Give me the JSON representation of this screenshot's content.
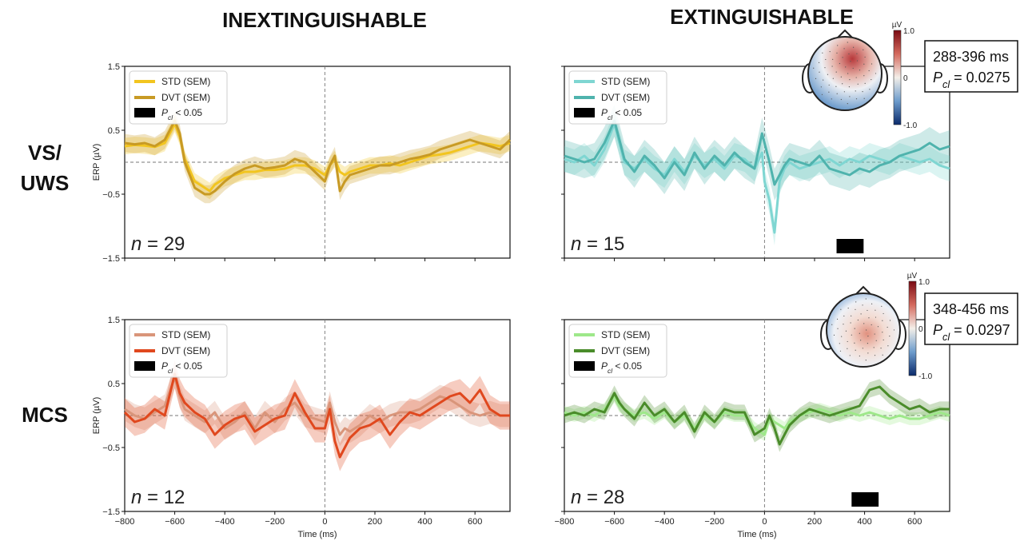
{
  "figure": {
    "column_titles": [
      "INEXTINGUISHABLE",
      "EXTINGUISHABLE"
    ],
    "row_titles": [
      [
        "VS/",
        "UWS"
      ],
      [
        "MCS"
      ]
    ]
  },
  "chart_data": [
    {
      "type": "line",
      "panel": "VS/UWS - Inextinguishable",
      "n_label": "n = 29",
      "ylabel": "ERP (µV)",
      "xlabel": "",
      "xlim": [
        -800,
        740
      ],
      "ylim": [
        -1.5,
        1.5
      ],
      "yticks": [
        "1.5",
        "0.5",
        "−0.5",
        "−1.5"
      ],
      "xticks": [],
      "x": [
        -800,
        -760,
        -720,
        -680,
        -640,
        -600,
        -580,
        -560,
        -520,
        -480,
        -460,
        -440,
        -400,
        -360,
        -320,
        -280,
        -240,
        -200,
        -160,
        -120,
        -80,
        -40,
        0,
        20,
        40,
        60,
        80,
        100,
        140,
        180,
        220,
        260,
        300,
        340,
        380,
        420,
        460,
        500,
        540,
        580,
        620,
        660,
        700,
        740
      ],
      "series": [
        {
          "name": "STD (SEM)",
          "color": "#f2c51f",
          "values": [
            0.25,
            0.27,
            0.26,
            0.24,
            0.3,
            0.6,
            0.4,
            0.05,
            -0.3,
            -0.4,
            -0.45,
            -0.35,
            -0.25,
            -0.2,
            -0.15,
            -0.15,
            -0.12,
            -0.12,
            -0.1,
            -0.05,
            -0.05,
            -0.1,
            -0.2,
            -0.05,
            0.05,
            -0.15,
            -0.2,
            -0.15,
            -0.1,
            -0.05,
            -0.05,
            -0.02,
            -0.05,
            0.0,
            0.05,
            0.1,
            0.12,
            0.15,
            0.2,
            0.25,
            0.3,
            0.28,
            0.25,
            0.3
          ],
          "sem": 0.13
        },
        {
          "name": "DVT (SEM)",
          "color": "#c89a24",
          "values": [
            0.3,
            0.28,
            0.3,
            0.25,
            0.35,
            0.65,
            0.45,
            0.0,
            -0.4,
            -0.5,
            -0.5,
            -0.45,
            -0.3,
            -0.18,
            -0.1,
            -0.05,
            -0.1,
            -0.08,
            -0.05,
            0.05,
            0.0,
            -0.15,
            -0.3,
            -0.05,
            0.1,
            -0.45,
            -0.3,
            -0.2,
            -0.15,
            -0.1,
            -0.05,
            -0.05,
            0.0,
            0.05,
            0.08,
            0.12,
            0.2,
            0.25,
            0.3,
            0.35,
            0.3,
            0.25,
            0.2,
            0.35
          ],
          "sem": 0.14
        }
      ],
      "significance": [],
      "legend": {
        "location": "top-left",
        "sig_label": "< 0.05"
      },
      "topomap": null
    },
    {
      "type": "line",
      "panel": "VS/UWS - Extinguishable",
      "n_label": "n = 15",
      "ylabel": "",
      "xlabel": "",
      "xlim": [
        -800,
        740
      ],
      "ylim": [
        -1.5,
        1.5
      ],
      "yticks": [],
      "xticks": [],
      "x": [
        -800,
        -760,
        -720,
        -680,
        -640,
        -600,
        -580,
        -560,
        -520,
        -480,
        -440,
        -400,
        -360,
        -320,
        -280,
        -240,
        -200,
        -160,
        -120,
        -80,
        -40,
        -10,
        0,
        20,
        40,
        60,
        80,
        100,
        140,
        180,
        220,
        260,
        300,
        340,
        380,
        420,
        460,
        500,
        540,
        580,
        620,
        660,
        700,
        740
      ],
      "series": [
        {
          "name": "STD (SEM)",
          "color": "#7fd6d2",
          "values": [
            0.05,
            0.0,
            0.1,
            -0.05,
            0.2,
            0.6,
            0.3,
            0.0,
            -0.1,
            0.05,
            -0.1,
            -0.2,
            0.05,
            -0.15,
            0.1,
            -0.05,
            0.05,
            -0.1,
            0.1,
            0.05,
            -0.1,
            0.15,
            -0.3,
            -0.6,
            -1.1,
            -0.3,
            -0.1,
            0.0,
            -0.1,
            -0.05,
            0.0,
            0.05,
            -0.05,
            0.05,
            0.0,
            0.1,
            0.05,
            0.0,
            0.1,
            0.05,
            0.0,
            0.05,
            -0.05,
            -0.1
          ],
          "sem": 0.2
        },
        {
          "name": "DVT (SEM)",
          "color": "#4fb3ad",
          "values": [
            0.1,
            0.05,
            0.0,
            0.05,
            0.3,
            0.65,
            0.35,
            0.05,
            -0.15,
            0.1,
            -0.05,
            -0.25,
            0.0,
            -0.2,
            0.15,
            -0.1,
            0.1,
            -0.05,
            0.15,
            0.0,
            -0.1,
            0.45,
            0.3,
            0.0,
            -0.35,
            -0.2,
            -0.05,
            0.05,
            0.0,
            -0.05,
            0.1,
            -0.1,
            -0.15,
            -0.2,
            -0.1,
            -0.15,
            -0.05,
            0.0,
            0.1,
            0.15,
            0.2,
            0.3,
            0.2,
            0.25
          ],
          "sem": 0.25
        }
      ],
      "significance": [
        [
          288,
          396
        ]
      ],
      "legend": {
        "location": "top-left",
        "sig_label": "< 0.05"
      },
      "topomap": {
        "window": "288-396 ms",
        "p_prefix": "P",
        "p_sub": "cl",
        "p_value": "= 0.0275",
        "colorbar_unit": "µV",
        "colorbar_ticks": [
          "1.0",
          "0",
          "-1.0"
        ]
      }
    },
    {
      "type": "line",
      "panel": "MCS - Inextinguishable",
      "n_label": "n = 12",
      "ylabel": "ERP (µV)",
      "xlabel": "Time (ms)",
      "xlim": [
        -800,
        740
      ],
      "ylim": [
        -1.5,
        1.5
      ],
      "yticks": [
        "1.5",
        "0.5",
        "−0.5",
        "−1.5"
      ],
      "xticks": [
        "−800",
        "−600",
        "−400",
        "−200",
        "0",
        "200",
        "400",
        "600"
      ],
      "x": [
        -800,
        -760,
        -720,
        -680,
        -640,
        -600,
        -580,
        -560,
        -520,
        -480,
        -440,
        -400,
        -360,
        -320,
        -280,
        -240,
        -200,
        -160,
        -120,
        -80,
        -40,
        0,
        20,
        40,
        60,
        80,
        100,
        140,
        180,
        220,
        260,
        300,
        340,
        380,
        420,
        460,
        500,
        540,
        580,
        620,
        660,
        700,
        740
      ],
      "series": [
        {
          "name": "STD (SEM)",
          "color": "#d9957a",
          "values": [
            0.1,
            0.0,
            -0.05,
            0.05,
            0.15,
            0.6,
            0.3,
            0.1,
            0.0,
            -0.1,
            0.05,
            -0.2,
            -0.1,
            0.05,
            -0.2,
            0.05,
            -0.1,
            0.1,
            0.2,
            0.0,
            -0.05,
            -0.1,
            0.2,
            -0.1,
            -0.3,
            -0.2,
            -0.25,
            -0.15,
            0.0,
            -0.1,
            0.0,
            0.05,
            0.05,
            0.1,
            0.2,
            0.3,
            0.25,
            0.15,
            0.05,
            0.0,
            0.05,
            0.0,
            0.0
          ],
          "sem": 0.18
        },
        {
          "name": "DVT (SEM)",
          "color": "#e0481e",
          "values": [
            0.05,
            -0.1,
            -0.05,
            0.1,
            0.0,
            0.65,
            0.35,
            0.2,
            0.05,
            -0.05,
            -0.3,
            -0.15,
            -0.05,
            0.0,
            -0.25,
            -0.15,
            -0.05,
            0.0,
            0.35,
            0.05,
            -0.2,
            -0.2,
            0.1,
            -0.4,
            -0.65,
            -0.5,
            -0.35,
            -0.2,
            -0.15,
            -0.05,
            -0.3,
            -0.1,
            0.05,
            0.0,
            0.1,
            0.2,
            0.3,
            0.35,
            0.2,
            0.4,
            0.1,
            0.0,
            0.0
          ],
          "sem": 0.22
        }
      ],
      "significance": [],
      "legend": {
        "location": "top-left",
        "sig_label": "< 0.05"
      },
      "topomap": null
    },
    {
      "type": "line",
      "panel": "MCS - Extinguishable",
      "n_label": "n = 28",
      "ylabel": "",
      "xlabel": "Time (ms)",
      "xlim": [
        -800,
        740
      ],
      "ylim": [
        -1.5,
        1.5
      ],
      "yticks": [],
      "xticks": [
        "−800",
        "−600",
        "−400",
        "−200",
        "0",
        "200",
        "400",
        "600"
      ],
      "x": [
        -800,
        -760,
        -720,
        -680,
        -640,
        -600,
        -580,
        -560,
        -520,
        -480,
        -440,
        -400,
        -360,
        -320,
        -280,
        -240,
        -200,
        -160,
        -120,
        -80,
        -40,
        0,
        20,
        40,
        60,
        80,
        100,
        140,
        180,
        220,
        260,
        300,
        340,
        380,
        420,
        460,
        500,
        540,
        580,
        620,
        660,
        700,
        740
      ],
      "series": [
        {
          "name": "STD (SEM)",
          "color": "#9ee88a",
          "values": [
            0.05,
            0.0,
            0.05,
            0.0,
            0.1,
            0.3,
            0.15,
            0.1,
            0.0,
            0.05,
            -0.05,
            0.05,
            -0.1,
            0.0,
            -0.2,
            0.0,
            -0.1,
            0.05,
            0.0,
            0.0,
            -0.2,
            -0.3,
            -0.05,
            -0.1,
            -0.15,
            -0.2,
            -0.1,
            0.0,
            0.05,
            0.1,
            0.05,
            0.0,
            0.05,
            0.0,
            0.05,
            0.0,
            -0.05,
            0.0,
            -0.05,
            -0.05,
            0.0,
            0.05,
            0.0
          ],
          "sem": 0.1
        },
        {
          "name": "DVT (SEM)",
          "color": "#4a8c2a",
          "values": [
            0.0,
            0.05,
            0.0,
            0.1,
            0.05,
            0.35,
            0.2,
            0.1,
            -0.05,
            0.2,
            0.0,
            0.1,
            -0.1,
            0.05,
            -0.25,
            0.05,
            -0.1,
            0.1,
            0.05,
            0.05,
            -0.3,
            -0.2,
            0.0,
            -0.2,
            -0.45,
            -0.3,
            -0.15,
            0.0,
            0.1,
            0.05,
            0.0,
            0.05,
            0.1,
            0.15,
            0.4,
            0.45,
            0.3,
            0.2,
            0.1,
            0.15,
            0.05,
            0.1,
            0.1
          ],
          "sem": 0.12
        }
      ],
      "significance": [
        [
          348,
          456
        ]
      ],
      "legend": {
        "location": "top-left",
        "sig_label": "< 0.05"
      },
      "topomap": {
        "window": "348-456 ms",
        "p_prefix": "P",
        "p_sub": "cl",
        "p_value": "= 0.0297",
        "colorbar_unit": "µV",
        "colorbar_ticks": [
          "1.0",
          "0",
          "-1.0"
        ]
      }
    }
  ],
  "legend_common": {
    "p_prefix": "P",
    "p_sub": "cl"
  }
}
